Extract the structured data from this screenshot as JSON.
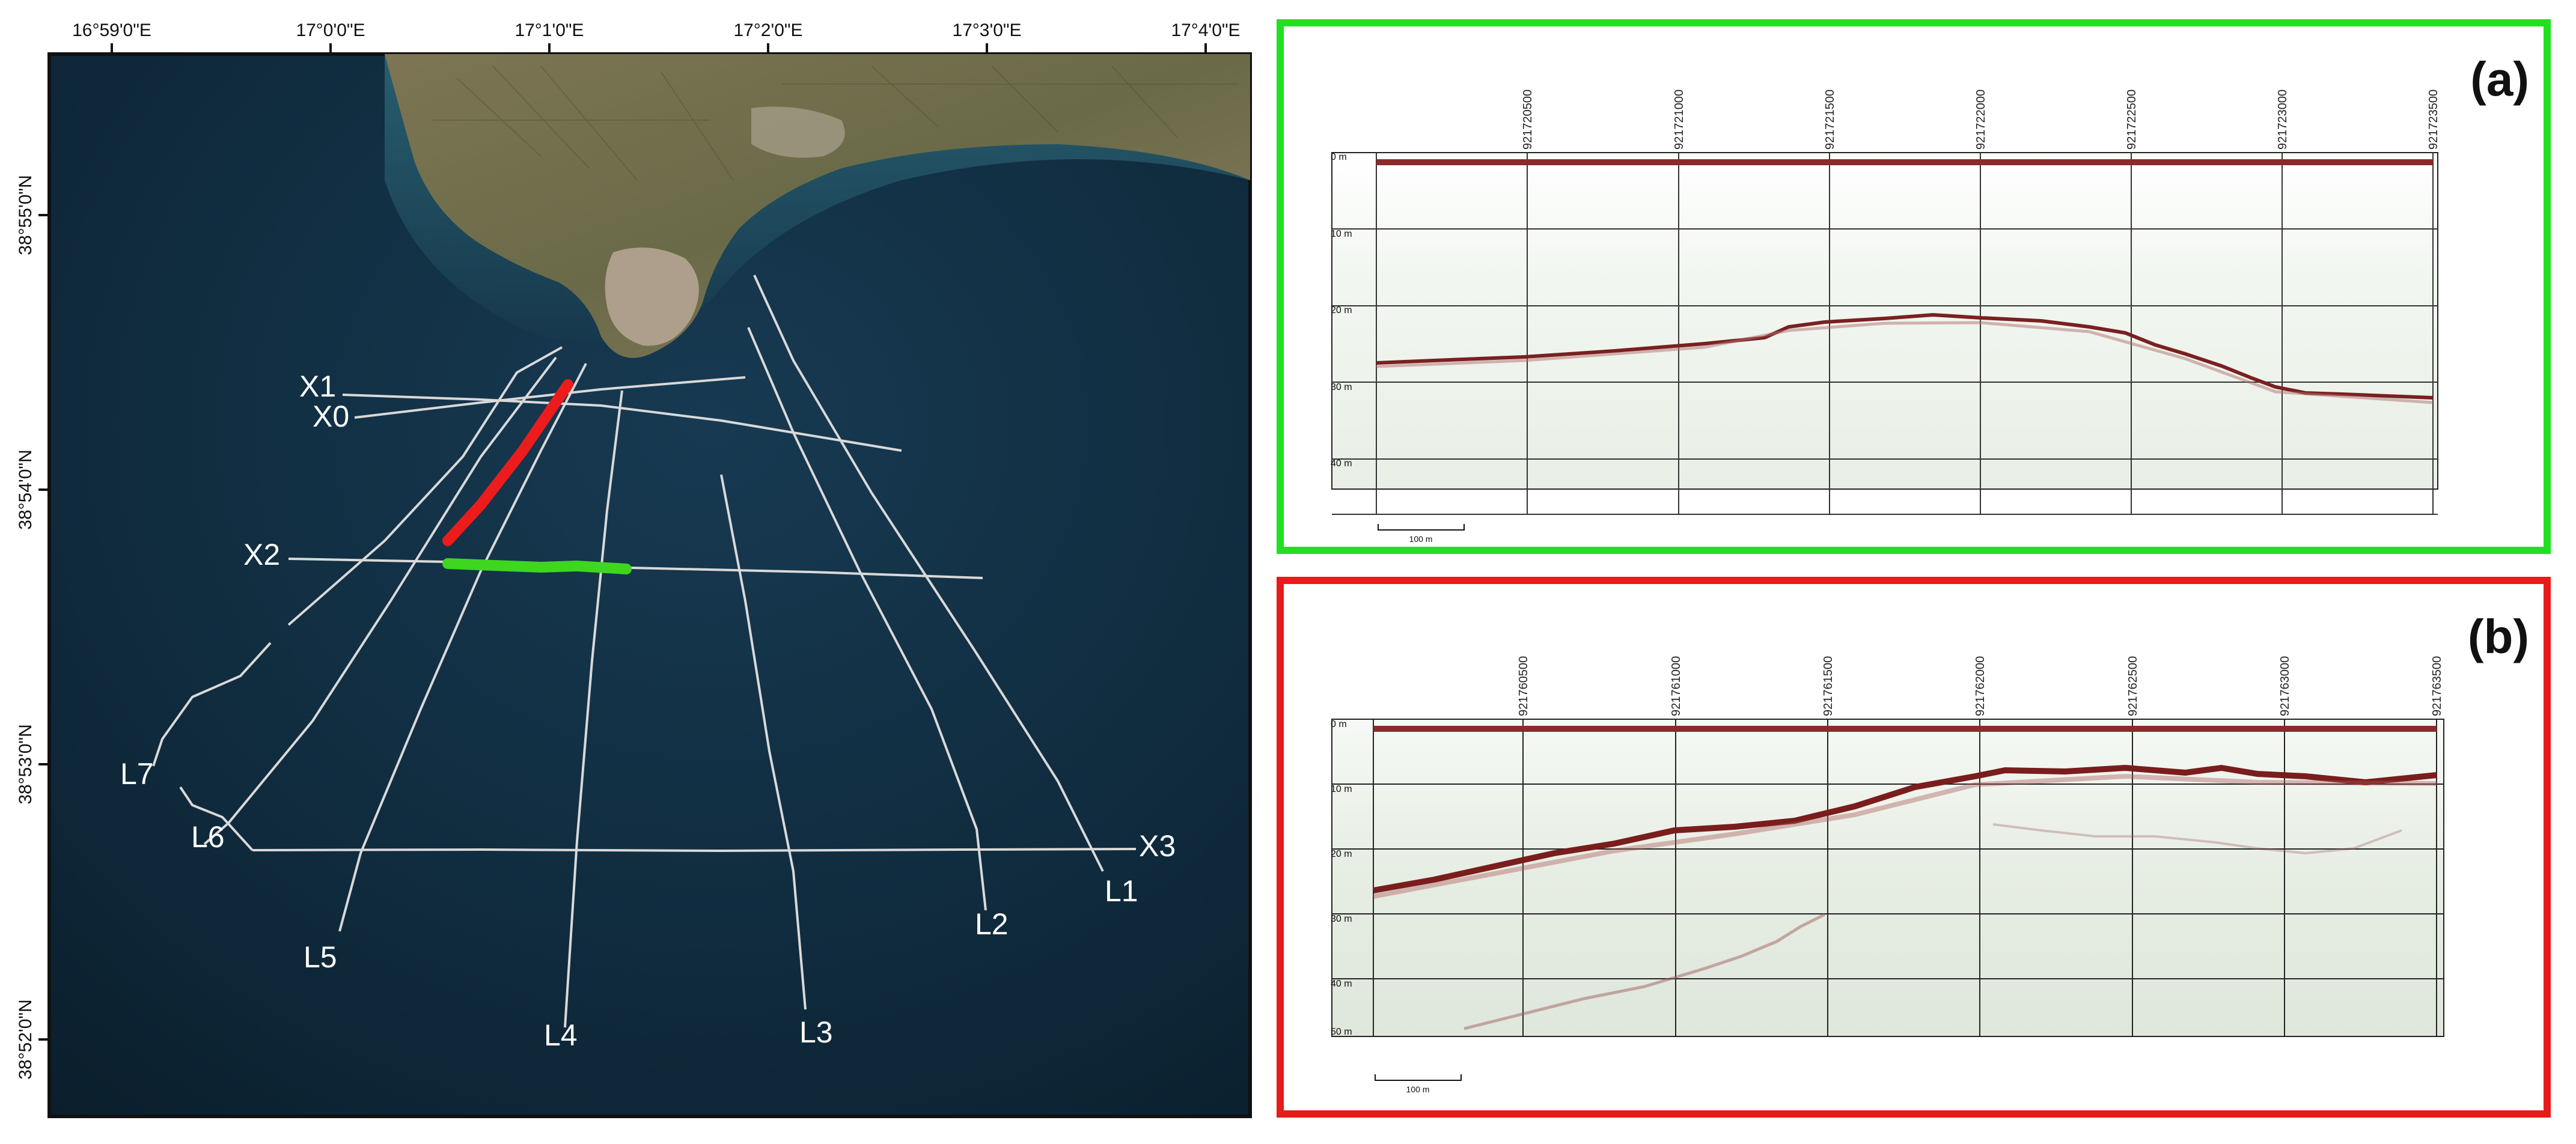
{
  "map": {
    "lon_ticks": [
      "16°59'0\"E",
      "17°0'0\"E",
      "17°1'0\"E",
      "17°2'0\"E",
      "17°3'0\"E",
      "17°4'0\"E"
    ],
    "lat_ticks": [
      "38°55'0\"N",
      "38°54'0\"N",
      "38°53'0\"N",
      "38°52'0\"N"
    ],
    "line_labels": {
      "X0": "X0",
      "X1": "X1",
      "X2": "X2",
      "X3": "X3",
      "L1": "L1",
      "L2": "L2",
      "L3": "L3",
      "L4": "L4",
      "L5": "L5",
      "L6": "L6",
      "L7": "L7"
    },
    "colors": {
      "sea": "#0f2a3c",
      "land": "#6f6a4a",
      "survey_line": "#d9d9d9",
      "highlight_a": "#3fd61f",
      "highlight_b": "#ec1c1c"
    }
  },
  "panel_a": {
    "letter": "(a)",
    "frame_color": "#21e021",
    "depth_labels": [
      "0 m",
      "10 m",
      "20 m",
      "30 m",
      "40 m"
    ],
    "trace_labels": [
      "921720500",
      "921721000",
      "921721500",
      "921722000",
      "921722500",
      "921723000",
      "921723500"
    ],
    "scale_label": "100 m"
  },
  "panel_b": {
    "letter": "(b)",
    "frame_color": "#e81a1a",
    "depth_labels": [
      "0 m",
      "10 m",
      "20 m",
      "30 m",
      "40 m",
      "50 m"
    ],
    "trace_labels": [
      "921760500",
      "921761000",
      "921761500",
      "921762000",
      "921762500",
      "921763000",
      "921763500"
    ],
    "scale_label": "100 m"
  }
}
